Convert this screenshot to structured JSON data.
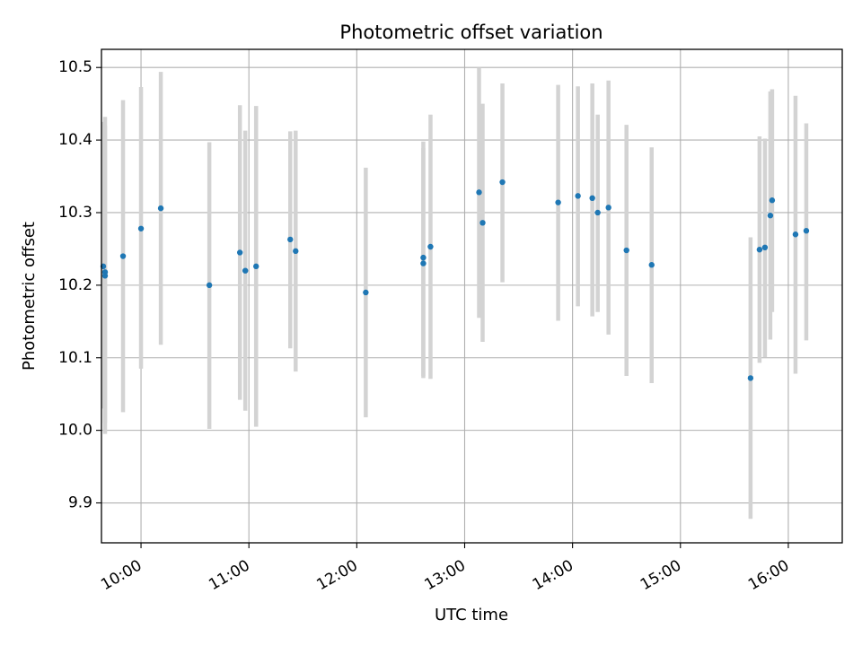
{
  "chart_data": {
    "type": "scatter",
    "title": "Photometric offset variation",
    "xlabel": "UTC time",
    "ylabel": "Photometric offset",
    "grid": true,
    "xlim": [
      "09:38",
      "16:30"
    ],
    "ylim": [
      9.845,
      10.525
    ],
    "x_ticks": [
      "10:00",
      "11:00",
      "12:00",
      "13:00",
      "14:00",
      "15:00",
      "16:00"
    ],
    "y_ticks": [
      "9.9",
      "10.0",
      "10.1",
      "10.2",
      "10.3",
      "10.4",
      "10.5"
    ],
    "errorbar_color": "#d3d3d3",
    "marker_color": "#1f77b4",
    "points": [
      {
        "x": "09:39",
        "y": 10.226,
        "lo": 10.03,
        "hi": 10.425
      },
      {
        "x": "09:40",
        "y": 10.218,
        "lo": 10.01,
        "hi": 10.42
      },
      {
        "x": "09:40",
        "y": 10.213,
        "lo": 9.995,
        "hi": 10.432
      },
      {
        "x": "09:50",
        "y": 10.24,
        "lo": 10.025,
        "hi": 10.455
      },
      {
        "x": "10:00",
        "y": 10.278,
        "lo": 10.085,
        "hi": 10.473
      },
      {
        "x": "10:11",
        "y": 10.306,
        "lo": 10.118,
        "hi": 10.494
      },
      {
        "x": "10:38",
        "y": 10.2,
        "lo": 10.002,
        "hi": 10.397
      },
      {
        "x": "10:55",
        "y": 10.245,
        "lo": 10.042,
        "hi": 10.448
      },
      {
        "x": "10:58",
        "y": 10.22,
        "lo": 10.027,
        "hi": 10.413
      },
      {
        "x": "11:04",
        "y": 10.226,
        "lo": 10.005,
        "hi": 10.447
      },
      {
        "x": "11:23",
        "y": 10.263,
        "lo": 10.113,
        "hi": 10.412
      },
      {
        "x": "11:26",
        "y": 10.247,
        "lo": 10.081,
        "hi": 10.413
      },
      {
        "x": "12:05",
        "y": 10.19,
        "lo": 10.018,
        "hi": 10.362
      },
      {
        "x": "12:37",
        "y": 10.238,
        "lo": 10.075,
        "hi": 10.398
      },
      {
        "x": "12:37",
        "y": 10.23,
        "lo": 10.072,
        "hi": 10.389
      },
      {
        "x": "12:41",
        "y": 10.253,
        "lo": 10.071,
        "hi": 10.435
      },
      {
        "x": "13:08",
        "y": 10.328,
        "lo": 10.155,
        "hi": 10.5
      },
      {
        "x": "13:10",
        "y": 10.286,
        "lo": 10.122,
        "hi": 10.45
      },
      {
        "x": "13:21",
        "y": 10.342,
        "lo": 10.204,
        "hi": 10.478
      },
      {
        "x": "13:52",
        "y": 10.314,
        "lo": 10.151,
        "hi": 10.476
      },
      {
        "x": "14:03",
        "y": 10.323,
        "lo": 10.171,
        "hi": 10.474
      },
      {
        "x": "14:11",
        "y": 10.32,
        "lo": 10.157,
        "hi": 10.478
      },
      {
        "x": "14:14",
        "y": 10.3,
        "lo": 10.163,
        "hi": 10.435
      },
      {
        "x": "14:20",
        "y": 10.307,
        "lo": 10.132,
        "hi": 10.482
      },
      {
        "x": "14:30",
        "y": 10.248,
        "lo": 10.075,
        "hi": 10.421
      },
      {
        "x": "14:44",
        "y": 10.228,
        "lo": 10.065,
        "hi": 10.39
      },
      {
        "x": "15:39",
        "y": 10.072,
        "lo": 9.878,
        "hi": 10.266
      },
      {
        "x": "15:44",
        "y": 10.249,
        "lo": 10.093,
        "hi": 10.405
      },
      {
        "x": "15:47",
        "y": 10.252,
        "lo": 10.101,
        "hi": 10.402
      },
      {
        "x": "15:50",
        "y": 10.296,
        "lo": 10.125,
        "hi": 10.467
      },
      {
        "x": "15:51",
        "y": 10.317,
        "lo": 10.163,
        "hi": 10.47
      },
      {
        "x": "16:04",
        "y": 10.27,
        "lo": 10.078,
        "hi": 10.461
      },
      {
        "x": "16:10",
        "y": 10.275,
        "lo": 10.124,
        "hi": 10.423
      }
    ]
  }
}
